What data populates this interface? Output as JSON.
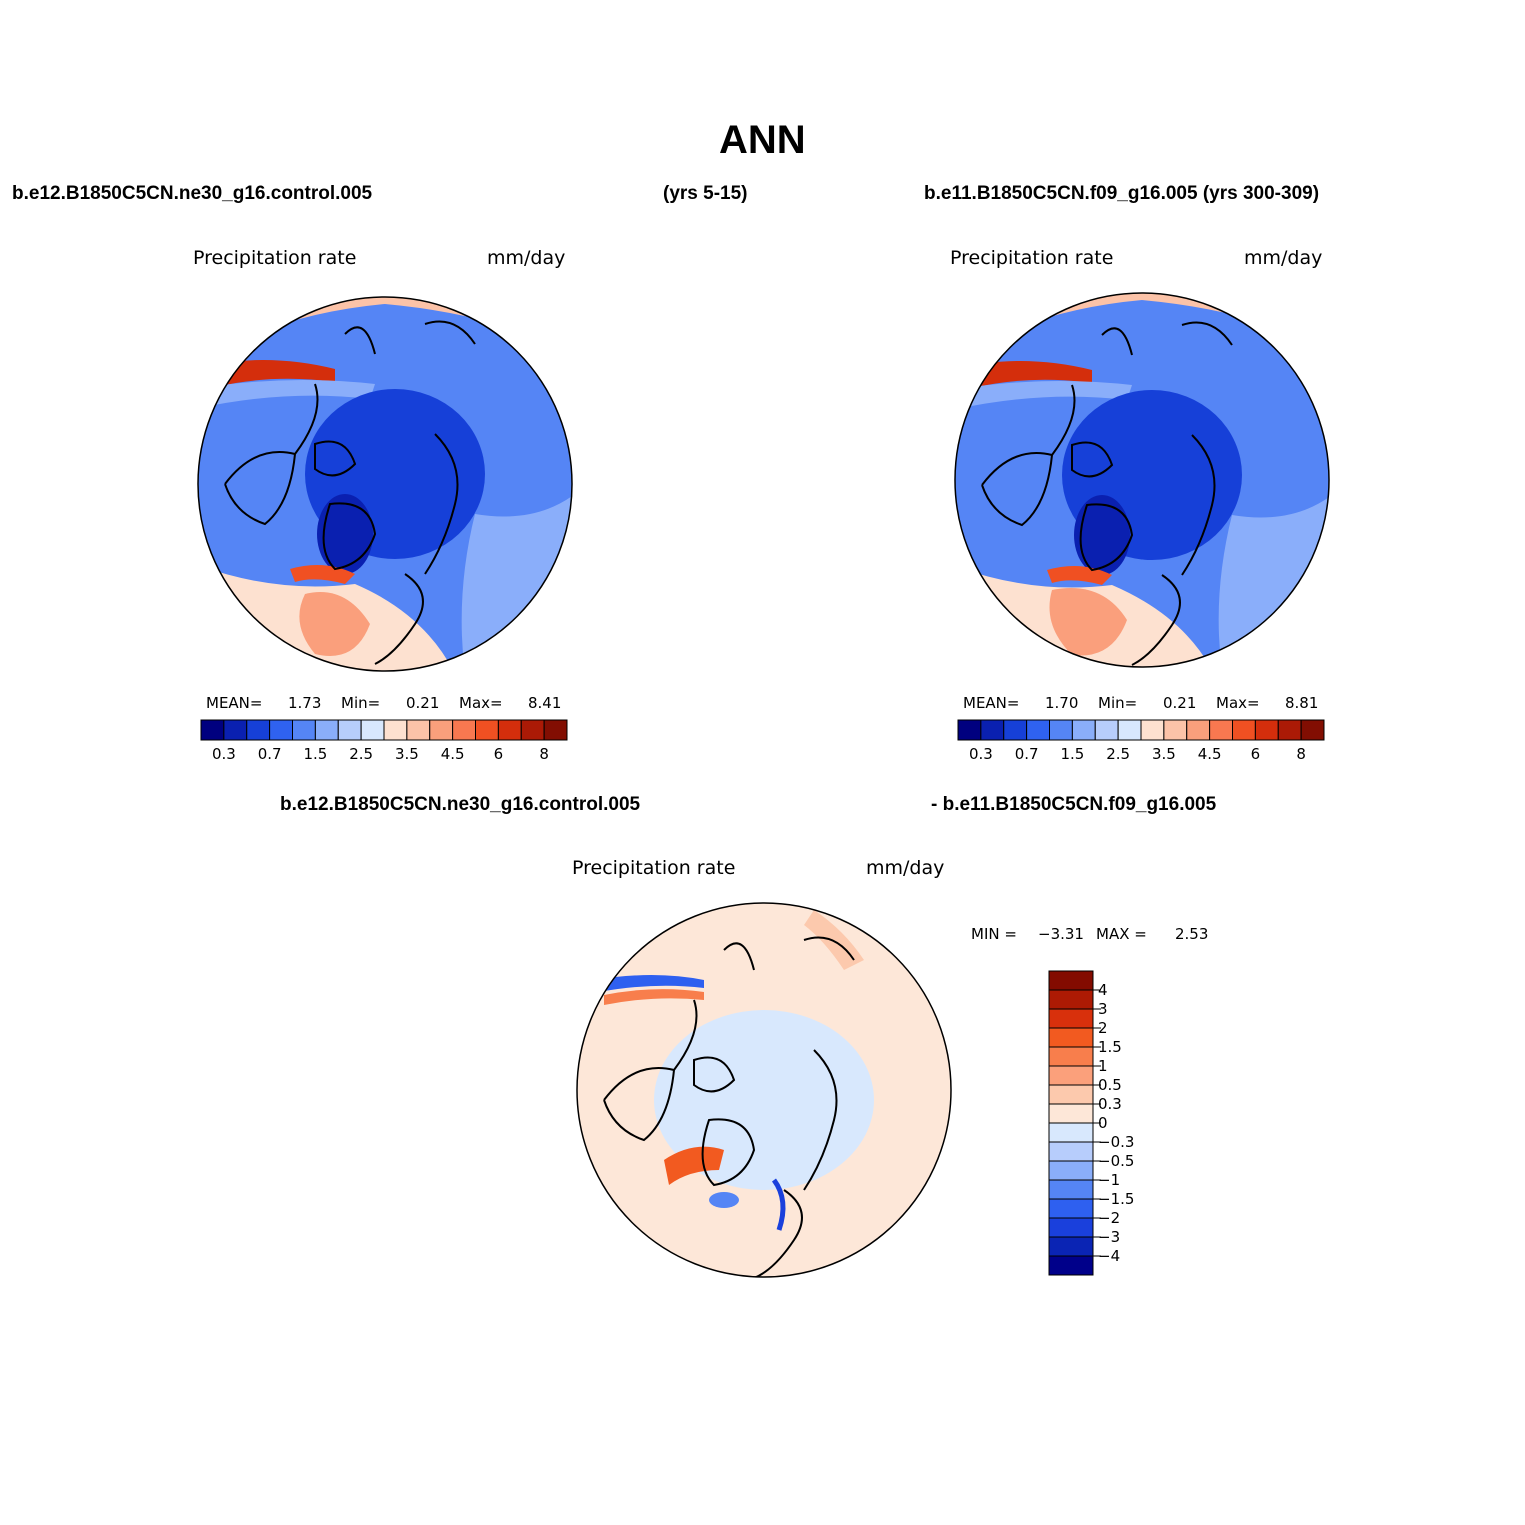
{
  "figure": {
    "title": "ANN"
  },
  "header": {
    "left_case": "b.e12.B1850C5CN.ne30_g16.control.005",
    "left_years": "(yrs 5-15)",
    "right_case": "b.e11.B1850C5CN.f09_g16.005 (yrs 300-309)",
    "diff_case_a": "b.e12.B1850C5CN.ne30_g16.control.005",
    "diff_case_b": "- b.e11.B1850C5CN.f09_g16.005"
  },
  "palette": {
    "abs": [
      "#00007f",
      "#0a20b0",
      "#1640d8",
      "#2f62f0",
      "#5585f5",
      "#8aaefa",
      "#b7cdfc",
      "#d8e8fd",
      "#fde1d0",
      "#fcc3a8",
      "#fa9f7c",
      "#f87850",
      "#f05022",
      "#d42e0c",
      "#ab1a06",
      "#820e02"
    ],
    "diff": [
      "#00008a",
      "#0a24b4",
      "#1a40dc",
      "#2e60f0",
      "#5585f5",
      "#8aaefa",
      "#b7cdfc",
      "#d8e8fd",
      "#fde7d8",
      "#fcc9ad",
      "#fba07b",
      "#f87e4c",
      "#f25a20",
      "#d8300c",
      "#ad1a04",
      "#830b00"
    ],
    "land_outline": "#000000"
  },
  "panels": [
    {
      "id": "left",
      "variable": "Precipitation  rate",
      "units": "mm/day",
      "stats": {
        "mean_label": "MEAN=",
        "mean": "1.73",
        "min_label": "Min=",
        "min": "0.21",
        "max_label": "Max=",
        "max": "8.41"
      },
      "colorbar_labels": [
        "0.3",
        "0.7",
        "1.5",
        "2.5",
        "3.5",
        "4.5",
        "6",
        "8"
      ]
    },
    {
      "id": "right",
      "variable": "Precipitation  rate",
      "units": "mm/day",
      "stats": {
        "mean_label": "MEAN=",
        "mean": "1.70",
        "min_label": "Min=",
        "min": "0.21",
        "max_label": "Max=",
        "max": "8.81"
      },
      "colorbar_labels": [
        "0.3",
        "0.7",
        "1.5",
        "2.5",
        "3.5",
        "4.5",
        "6",
        "8"
      ]
    },
    {
      "id": "diff",
      "variable": "Precipitation  rate",
      "units": "mm/day",
      "stats": {
        "min_label": "MIN =",
        "min": "−3.31",
        "max_label": "MAX =",
        "max": "2.53"
      },
      "colorbar_labels": [
        "4",
        "3",
        "2",
        "1.5",
        "1",
        "0.5",
        "0.3",
        "0",
        "−0.3",
        "−0.5",
        "−1",
        "−1.5",
        "−2",
        "−3",
        "−4"
      ]
    }
  ]
}
